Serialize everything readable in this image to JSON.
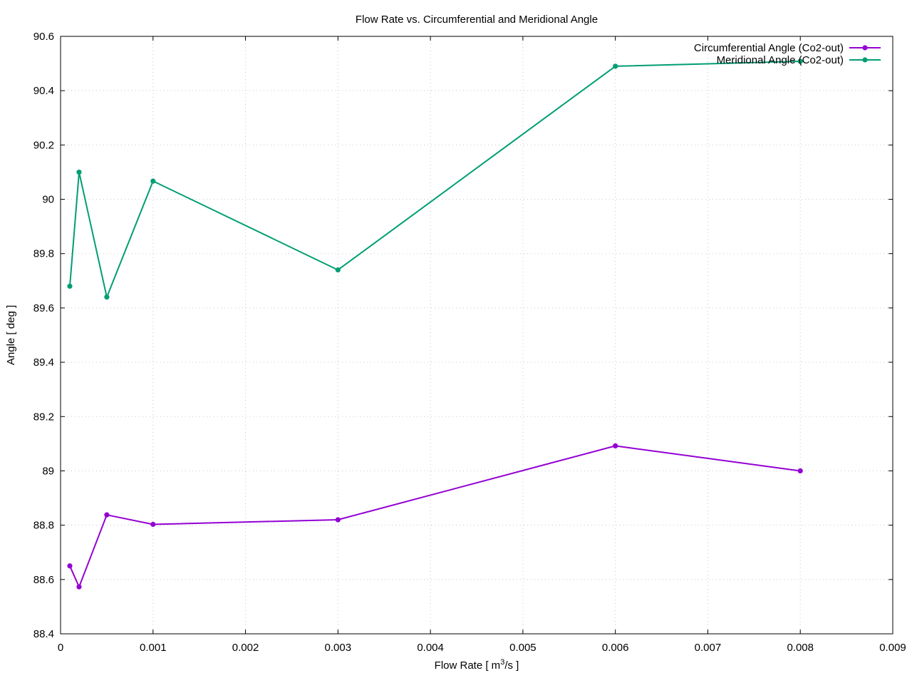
{
  "chart_data": {
    "type": "line",
    "title": "Flow Rate vs. Circumferential and Meridional Angle",
    "xlabel_main": "Flow Rate [ m",
    "xlabel_sup": "3",
    "xlabel_tail": "/s ]",
    "ylabel": "Angle [ deg ]",
    "xlim": [
      0,
      0.009
    ],
    "ylim": [
      88.4,
      90.6
    ],
    "x_ticks": [
      0,
      0.001,
      0.002,
      0.003,
      0.004,
      0.005,
      0.006,
      0.007,
      0.008,
      0.009
    ],
    "x_tick_labels": [
      "0",
      "0.001",
      "0.002",
      "0.003",
      "0.004",
      "0.005",
      "0.006",
      "0.007",
      "0.008",
      "0.009"
    ],
    "y_ticks": [
      88.4,
      88.6,
      88.8,
      89,
      89.2,
      89.4,
      89.6,
      89.8,
      90,
      90.2,
      90.4,
      90.6
    ],
    "y_tick_labels": [
      "88.4",
      "88.6",
      "88.8",
      "89",
      "89.2",
      "89.4",
      "89.6",
      "89.8",
      "90",
      "90.2",
      "90.4",
      "90.6"
    ],
    "grid": true,
    "legend_position": "top-right",
    "series": [
      {
        "name": "Circumferential Angle (Co2-out)",
        "color": "#9400d3",
        "x": [
          0.0001,
          0.0002,
          0.0005,
          0.001,
          0.003,
          0.006,
          0.008
        ],
        "y": [
          88.65,
          88.573,
          88.838,
          88.803,
          88.82,
          89.092,
          89.0
        ]
      },
      {
        "name": "Meridional Angle (Co2-out)",
        "color": "#009e73",
        "x": [
          0.0001,
          0.0002,
          0.0005,
          0.001,
          0.003,
          0.006,
          0.008
        ],
        "y": [
          89.68,
          90.1,
          89.64,
          90.067,
          89.74,
          90.49,
          90.508
        ]
      }
    ]
  }
}
